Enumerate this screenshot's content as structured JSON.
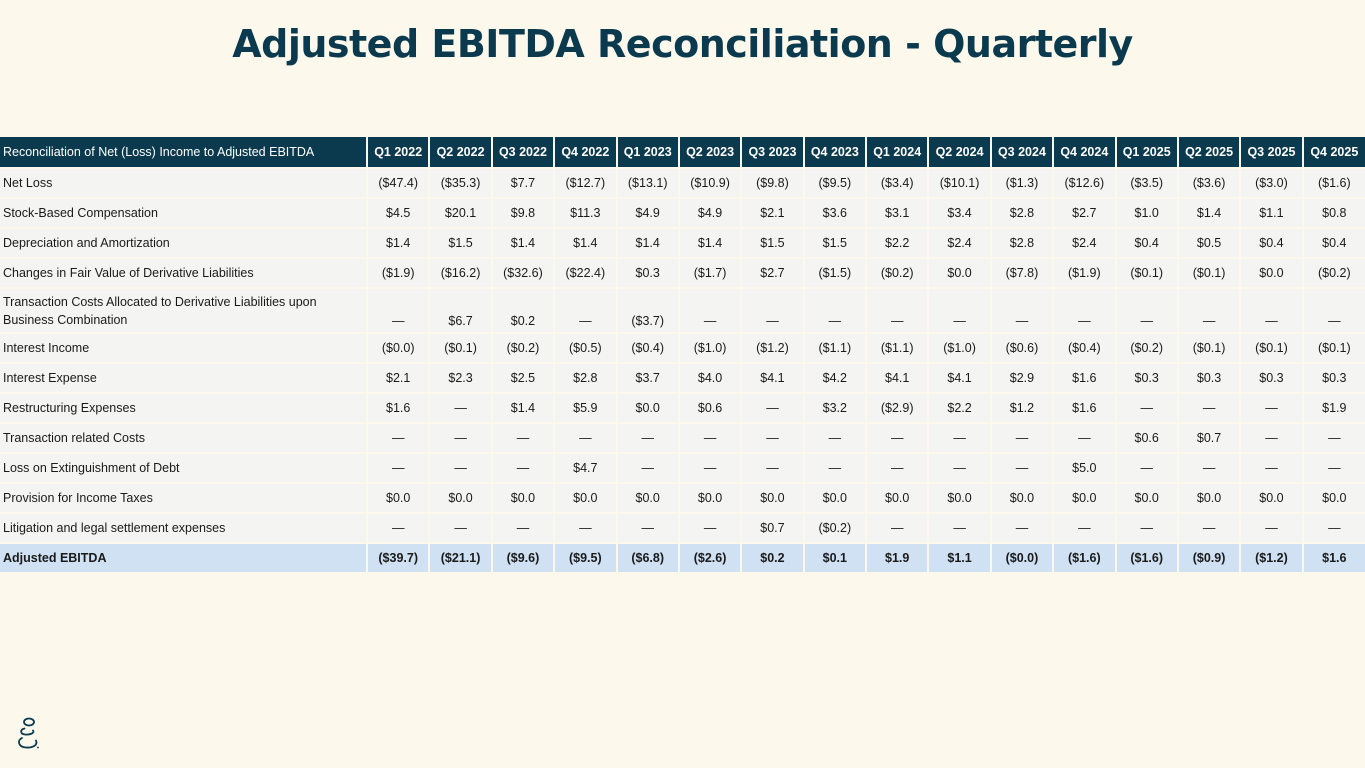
{
  "title": "Adjusted EBITDA Reconciliation - Quarterly",
  "table": {
    "label_header": "Reconciliation of Net (Loss) Income to Adjusted EBITDA",
    "quarters": [
      "Q1 2022",
      "Q2 2022",
      "Q3 2022",
      "Q4 2022",
      "Q1 2023",
      "Q2 2023",
      "Q3 2023",
      "Q4 2023",
      "Q1 2024",
      "Q2 2024",
      "Q3 2024",
      "Q4 2024",
      "Q1 2025",
      "Q2 2025",
      "Q3 2025",
      "Q4 2025"
    ],
    "rows": [
      {
        "label": "Net Loss",
        "values": [
          "($47.4)",
          "($35.3)",
          "$7.7",
          "($12.7)",
          "($13.1)",
          "($10.9)",
          "($9.8)",
          "($9.5)",
          "($3.4)",
          "($10.1)",
          "($1.3)",
          "($12.6)",
          "($3.5)",
          "($3.6)",
          "($3.0)",
          "($1.6)"
        ]
      },
      {
        "label": "Stock-Based Compensation",
        "values": [
          "$4.5",
          "$20.1",
          "$9.8",
          "$11.3",
          "$4.9",
          "$4.9",
          "$2.1",
          "$3.6",
          "$3.1",
          "$3.4",
          "$2.8",
          "$2.7",
          "$1.0",
          "$1.4",
          "$1.1",
          "$0.8"
        ]
      },
      {
        "label": "Depreciation and Amortization",
        "values": [
          "$1.4",
          "$1.5",
          "$1.4",
          "$1.4",
          "$1.4",
          "$1.4",
          "$1.5",
          "$1.5",
          "$2.2",
          "$2.4",
          "$2.8",
          "$2.4",
          "$0.4",
          "$0.5",
          "$0.4",
          "$0.4"
        ]
      },
      {
        "label": "Changes in Fair Value of Derivative Liabilities",
        "values": [
          "($1.9)",
          "($16.2)",
          "($32.6)",
          "($22.4)",
          "$0.3",
          "($1.7)",
          "$2.7",
          "($1.5)",
          "($0.2)",
          "$0.0",
          "($7.8)",
          "($1.9)",
          "($0.1)",
          "($0.1)",
          "$0.0",
          "($0.2)"
        ]
      },
      {
        "label": "Transaction Costs Allocated to Derivative Liabilities upon Business Combination",
        "tall": true,
        "values": [
          "—",
          "$6.7",
          "$0.2",
          "—",
          "($3.7)",
          "—",
          "—",
          "—",
          "—",
          "—",
          "—",
          "—",
          "—",
          "—",
          "—",
          "—"
        ]
      },
      {
        "label": "Interest Income",
        "values": [
          "($0.0)",
          "($0.1)",
          "($0.2)",
          "($0.5)",
          "($0.4)",
          "($1.0)",
          "($1.2)",
          "($1.1)",
          "($1.1)",
          "($1.0)",
          "($0.6)",
          "($0.4)",
          "($0.2)",
          "($0.1)",
          "($0.1)",
          "($0.1)"
        ]
      },
      {
        "label": "Interest Expense",
        "values": [
          "$2.1",
          "$2.3",
          "$2.5",
          "$2.8",
          "$3.7",
          "$4.0",
          "$4.1",
          "$4.2",
          "$4.1",
          "$4.1",
          "$2.9",
          "$1.6",
          "$0.3",
          "$0.3",
          "$0.3",
          "$0.3"
        ]
      },
      {
        "label": "Restructuring Expenses",
        "values": [
          "$1.6",
          "—",
          "$1.4",
          "$5.9",
          "$0.0",
          "$0.6",
          "—",
          "$3.2",
          "($2.9)",
          "$2.2",
          "$1.2",
          "$1.6",
          "—",
          "—",
          "—",
          "$1.9"
        ]
      },
      {
        "label": "Transaction related Costs",
        "values": [
          "—",
          "—",
          "—",
          "—",
          "—",
          "—",
          "—",
          "—",
          "—",
          "—",
          "—",
          "—",
          "$0.6",
          "$0.7",
          "—",
          "—"
        ]
      },
      {
        "label": "Loss on Extinguishment of Debt",
        "values": [
          "—",
          "—",
          "—",
          "$4.7",
          "—",
          "—",
          "—",
          "—",
          "—",
          "—",
          "—",
          "$5.0",
          "—",
          "—",
          "—",
          "—"
        ]
      },
      {
        "label": "Provision for Income Taxes",
        "values": [
          "$0.0",
          "$0.0",
          "$0.0",
          "$0.0",
          "$0.0",
          "$0.0",
          "$0.0",
          "$0.0",
          "$0.0",
          "$0.0",
          "$0.0",
          "$0.0",
          "$0.0",
          "$0.0",
          "$0.0",
          "$0.0"
        ]
      },
      {
        "label": "Litigation and legal settlement expenses",
        "values": [
          "—",
          "—",
          "—",
          "—",
          "—",
          "—",
          "$0.7",
          "($0.2)",
          "—",
          "—",
          "—",
          "—",
          "—",
          "—",
          "—",
          "—"
        ]
      }
    ],
    "total": {
      "label": "Adjusted EBITDA",
      "values": [
        "($39.7)",
        "($21.1)",
        "($9.6)",
        "($9.5)",
        "($6.8)",
        "($2.6)",
        "$0.2",
        "$0.1",
        "$1.9",
        "$1.1",
        "($0.0)",
        "($1.6)",
        "($1.6)",
        "($0.9)",
        "($1.2)",
        "$1.6"
      ]
    }
  },
  "colors": {
    "background": "#fdf8ec",
    "title": "#0b3a4e",
    "header_bg": "#0b3a4e",
    "total_row_bg": "#cfe1f2"
  },
  "logo": {
    "icon": "stacked-stones-logo-icon"
  }
}
